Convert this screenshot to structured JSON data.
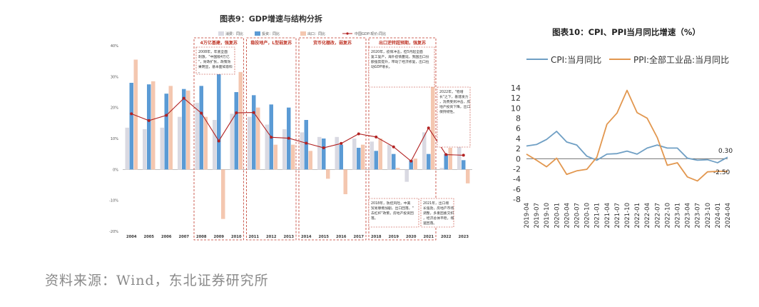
{
  "chart_data": [
    {
      "type": "bar",
      "title": "图表9：GDP增速与结构分拆",
      "legend": [
        "消费：同比",
        "投资：同比",
        "出口：同比",
        "中国GDP:现价:同比"
      ],
      "categories": [
        "2004",
        "2005",
        "2006",
        "2007",
        "2008",
        "2009",
        "2010",
        "2011",
        "2012",
        "2013",
        "2014",
        "2015",
        "2016",
        "2017",
        "2018",
        "2019",
        "2020",
        "2021",
        "2022",
        "2023"
      ],
      "ylim": [
        -20,
        40
      ],
      "yticks": [
        "40%",
        "30%",
        "20%",
        "10%",
        "0%",
        "-10%",
        "-20%"
      ],
      "series": [
        {
          "name": "消费：同比",
          "color": "#d9d9e2",
          "values": [
            13.5,
            13,
            13.5,
            17,
            21.5,
            16,
            18,
            17,
            14.5,
            13,
            12,
            10.5,
            10.5,
            10,
            9,
            8,
            -4,
            12,
            0.5,
            7.5
          ]
        },
        {
          "name": "投资：同比",
          "color": "#5b9bd5",
          "values": [
            28,
            27.5,
            24.5,
            26,
            27,
            31,
            25,
            24,
            21,
            20,
            16,
            10,
            8,
            7,
            6,
            5,
            3,
            5,
            5,
            3
          ]
        },
        {
          "name": "出口：同比",
          "color": "#f4c7b0",
          "values": [
            35.5,
            28.5,
            27,
            25.5,
            17,
            -16,
            31.5,
            20,
            8,
            8,
            6,
            -3,
            -8,
            8,
            10,
            0.5,
            3.5,
            30,
            7,
            -4.5
          ]
        },
        {
          "name": "中国GDP:现价:同比",
          "color": "#b22222",
          "type": "line",
          "values": [
            18,
            15.8,
            17.5,
            23,
            18.2,
            9.2,
            18.3,
            18.4,
            10.4,
            10.1,
            8.5,
            7,
            8.4,
            11.5,
            10.5,
            7.3,
            2.7,
            13.4,
            4.8,
            4.6
          ]
        }
      ],
      "periods": [
        {
          "label": "4万亿基建，强复苏",
          "note": "2008年，年底全面刺激，\"中国版4万亿\"，财政扩张，政策效果明显，基本面如意料。"
        },
        {
          "label": "稳投地产，L型弱复苏",
          "note": ""
        },
        {
          "label": "货币化棚改，弱复苏",
          "note": ""
        },
        {
          "label": "出口逆转超预期，强复苏",
          "note": "2020年，疫情冲击，但5月起全面复工复产，海外疫情蔓延，我国出口份额强势提升，带动了经济修复，出口拉动GDP增长。"
        }
      ],
      "notes": [
        "2018年，防控风险，中美贸易摩擦加剧，出口回落，\"去杠杆\"政策，房地产投资回落。",
        "2021年，出口增长强劲，房地产市场调整，多重因素交织，经济总体平稳，增速回落。",
        "2022年，\"稳增长\"之下，基建发力，消费受到冲击，房地产投资下降，出口保持韧性。"
      ]
    },
    {
      "type": "line",
      "title": "图表10：CPI、PPI当月同比增速（%）",
      "x": [
        "2019-04",
        "2019-07",
        "2019-10",
        "2020-01",
        "2020-04",
        "2020-07",
        "2020-10",
        "2021-01",
        "2021-04",
        "2021-07",
        "2021-10",
        "2022-01",
        "2022-04",
        "2022-07",
        "2022-10",
        "2023-01",
        "2023-04",
        "2023-07",
        "2023-10",
        "2024-01",
        "2024-04"
      ],
      "ylim": [
        -8,
        14
      ],
      "yticks": [
        "14",
        "12",
        "10",
        "8",
        "6",
        "4",
        "2",
        "0",
        "-2",
        "-4",
        "-6",
        "-8"
      ],
      "series": [
        {
          "name": "CPI:当月同比",
          "color": "#6f9fc4",
          "values": [
            2.5,
            2.8,
            3.8,
            5.4,
            3.3,
            2.7,
            0.5,
            -0.3,
            0.9,
            1.0,
            1.5,
            0.9,
            2.1,
            2.7,
            2.1,
            2.1,
            0.1,
            -0.3,
            -0.2,
            -0.8,
            0.3
          ]
        },
        {
          "name": "PPI:全部工业品:当月同比",
          "color": "#e2974f",
          "values": [
            0.9,
            -0.3,
            -1.6,
            0.1,
            -3.1,
            -2.4,
            -2.1,
            0.3,
            6.8,
            9.0,
            13.5,
            9.1,
            8.0,
            4.2,
            -1.3,
            -0.8,
            -3.6,
            -4.4,
            -2.6,
            -2.5,
            -2.5
          ]
        }
      ],
      "annotations": [
        "0.30",
        "-2.50"
      ]
    }
  ],
  "source": "资料来源：Wind，东北证券研究所"
}
